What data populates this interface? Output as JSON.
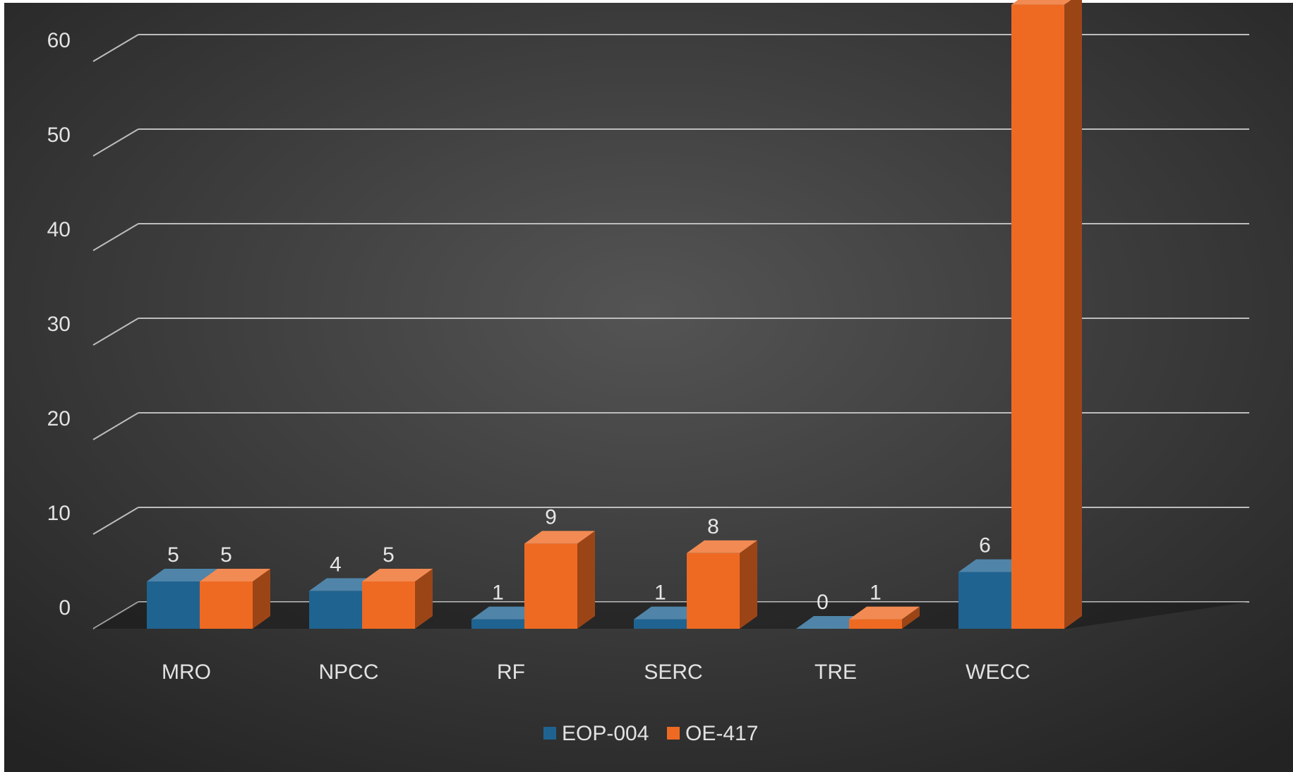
{
  "chart_data": {
    "type": "bar",
    "categories": [
      "MRO",
      "NPCC",
      "RF",
      "SERC",
      "TRE",
      "WECC"
    ],
    "series": [
      {
        "name": "EOP-004",
        "values": [
          5,
          4,
          1,
          1,
          0,
          6
        ],
        "color": "#1f6391"
      },
      {
        "name": "OE-417",
        "values": [
          5,
          5,
          9,
          8,
          1,
          66
        ],
        "color": "#ee6a23"
      }
    ],
    "ylim": [
      0,
      70
    ],
    "yticks": [
      0,
      10,
      20,
      30,
      40,
      50,
      60,
      70
    ],
    "grid": true,
    "legend": "bottom",
    "style": "3d-clustered-column",
    "background": "#3a3a3a"
  }
}
